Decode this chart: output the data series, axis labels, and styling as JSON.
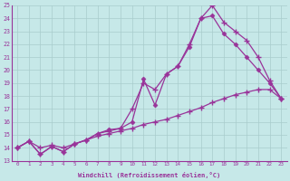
{
  "xlabel": "Windchill (Refroidissement éolien,°C)",
  "xlim": [
    -0.5,
    23.5
  ],
  "ylim": [
    13,
    25
  ],
  "xtick_labels": [
    "0",
    "1",
    "2",
    "3",
    "4",
    "5",
    "6",
    "7",
    "8",
    "9",
    "10",
    "11",
    "12",
    "13",
    "14",
    "15",
    "16",
    "17",
    "18",
    "19",
    "20",
    "21",
    "22",
    "23"
  ],
  "ytick_labels": [
    "13",
    "14",
    "15",
    "16",
    "17",
    "18",
    "19",
    "20",
    "21",
    "22",
    "23",
    "24",
    "25"
  ],
  "bg_color": "#c6e8e8",
  "line_color": "#993399",
  "grid_color": "#a8cccc",
  "line1_x": [
    0,
    1,
    2,
    3,
    4,
    5,
    6,
    7,
    8,
    9,
    10,
    11,
    12,
    13,
    14,
    15,
    16,
    17,
    18,
    19,
    20,
    21,
    22,
    23
  ],
  "line1_y": [
    14.0,
    14.5,
    13.5,
    14.1,
    13.7,
    14.3,
    14.6,
    15.1,
    15.3,
    15.5,
    17.0,
    19.0,
    18.5,
    19.7,
    20.3,
    22.0,
    24.0,
    25.0,
    23.7,
    23.0,
    22.3,
    21.0,
    19.2,
    17.8
  ],
  "line2_x": [
    0,
    1,
    2,
    3,
    4,
    5,
    6,
    7,
    8,
    9,
    10,
    11,
    12,
    13,
    14,
    15,
    16,
    17,
    18,
    19,
    20,
    21,
    22,
    23
  ],
  "line2_y": [
    14.0,
    14.5,
    13.5,
    14.1,
    13.7,
    14.3,
    14.6,
    15.1,
    15.4,
    15.5,
    16.0,
    19.3,
    17.3,
    19.7,
    20.3,
    21.8,
    24.0,
    24.2,
    22.8,
    22.0,
    21.0,
    20.0,
    19.0,
    17.8
  ],
  "line3_x": [
    0,
    1,
    2,
    3,
    4,
    5,
    6,
    7,
    8,
    9,
    10,
    11,
    12,
    13,
    14,
    15,
    16,
    17,
    18,
    19,
    20,
    21,
    22,
    23
  ],
  "line3_y": [
    14.0,
    14.5,
    14.0,
    14.2,
    14.0,
    14.3,
    14.6,
    14.9,
    15.1,
    15.3,
    15.5,
    15.8,
    16.0,
    16.2,
    16.5,
    16.8,
    17.1,
    17.5,
    17.8,
    18.1,
    18.3,
    18.5,
    18.5,
    17.8
  ]
}
